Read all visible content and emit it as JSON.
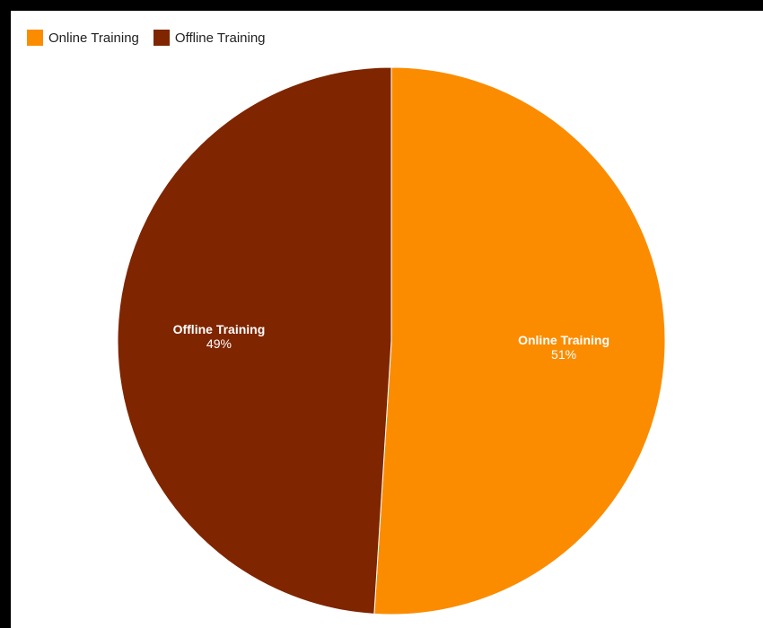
{
  "chart_data": {
    "type": "pie",
    "categories": [
      "Online Training",
      "Offline Training"
    ],
    "values": [
      51,
      49
    ],
    "value_labels": [
      "51%",
      "49%"
    ],
    "colors": [
      "#FB8C00",
      "#7F2500"
    ],
    "legend_position": "top-left"
  },
  "legend": {
    "items": [
      {
        "label": "Online Training",
        "color": "#FB8C00"
      },
      {
        "label": "Offline Training",
        "color": "#7F2500"
      }
    ]
  }
}
